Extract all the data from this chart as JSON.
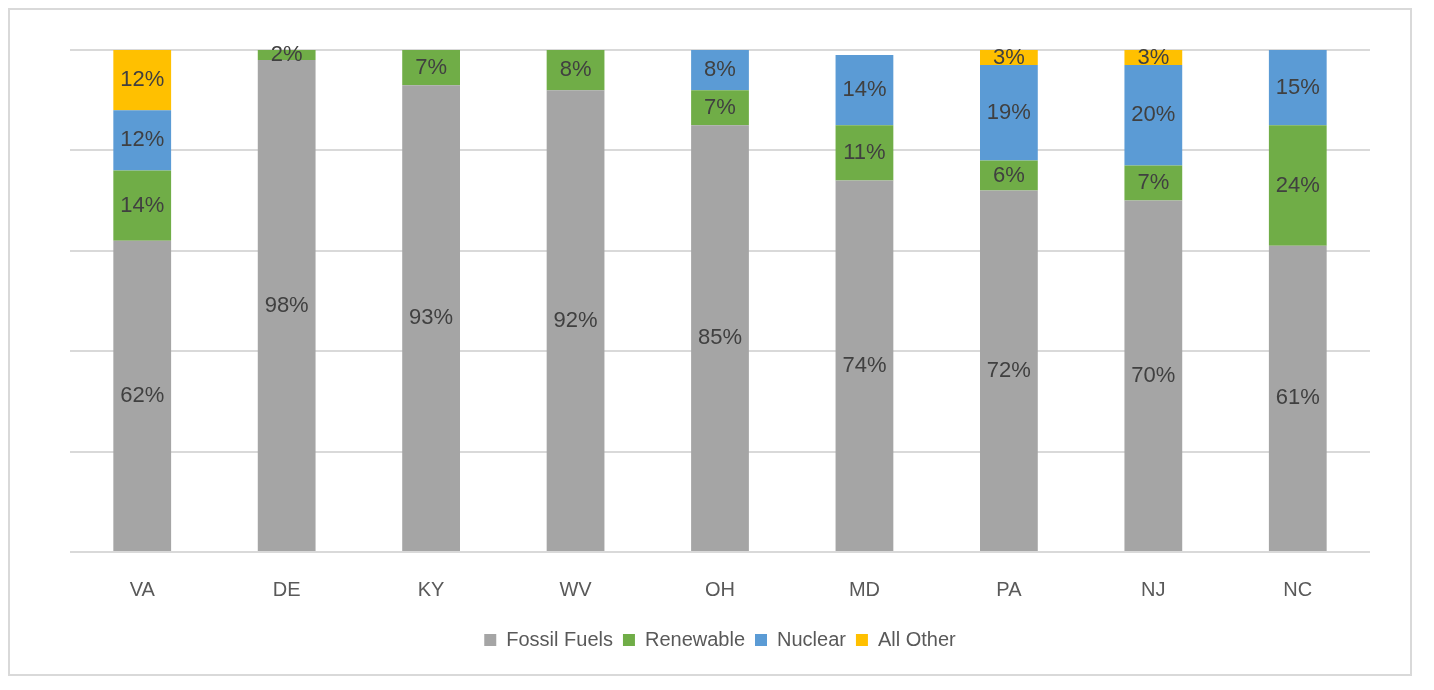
{
  "chart_data": {
    "type": "bar",
    "stacked": true,
    "categories": [
      "VA",
      "DE",
      "KY",
      "WV",
      "OH",
      "MD",
      "PA",
      "NJ",
      "NC"
    ],
    "series": [
      {
        "name": "Fossil Fuels",
        "color": "#a5a5a5",
        "values": [
          62,
          98,
          93,
          92,
          85,
          74,
          72,
          70,
          61
        ],
        "value_labels": [
          "62%",
          "98%",
          "93%",
          "92%",
          "85%",
          "74%",
          "72%",
          "70%",
          "61%"
        ]
      },
      {
        "name": "Renewable",
        "color": "#70ad47",
        "values": [
          14,
          2,
          7,
          8,
          7,
          11,
          6,
          7,
          24
        ],
        "value_labels": [
          "14%",
          "2%",
          "7%",
          "8%",
          "7%",
          "11%",
          "6%",
          "7%",
          "24%"
        ]
      },
      {
        "name": "Nuclear",
        "color": "#5b9bd5",
        "values": [
          12,
          null,
          null,
          null,
          8,
          14,
          19,
          20,
          15
        ],
        "value_labels": [
          "12%",
          null,
          null,
          null,
          "8%",
          "14%",
          "19%",
          "20%",
          "15%"
        ]
      },
      {
        "name": "All Other",
        "color": "#ffc000",
        "values": [
          12,
          null,
          null,
          null,
          null,
          null,
          3,
          3,
          null
        ],
        "value_labels": [
          "12%",
          null,
          null,
          null,
          null,
          null,
          "3%",
          "3%",
          null
        ]
      }
    ],
    "ylim": [
      0,
      100
    ],
    "yticks": [
      {
        "value": 0,
        "label": null
      },
      {
        "value": 20,
        "label": null
      },
      {
        "value": 40,
        "label": null
      },
      {
        "value": 60,
        "label": null
      },
      {
        "value": 80,
        "label": null
      },
      {
        "value": 100,
        "label": null
      }
    ],
    "tick_labels": "x",
    "grid": "y",
    "legend": "bottom"
  }
}
